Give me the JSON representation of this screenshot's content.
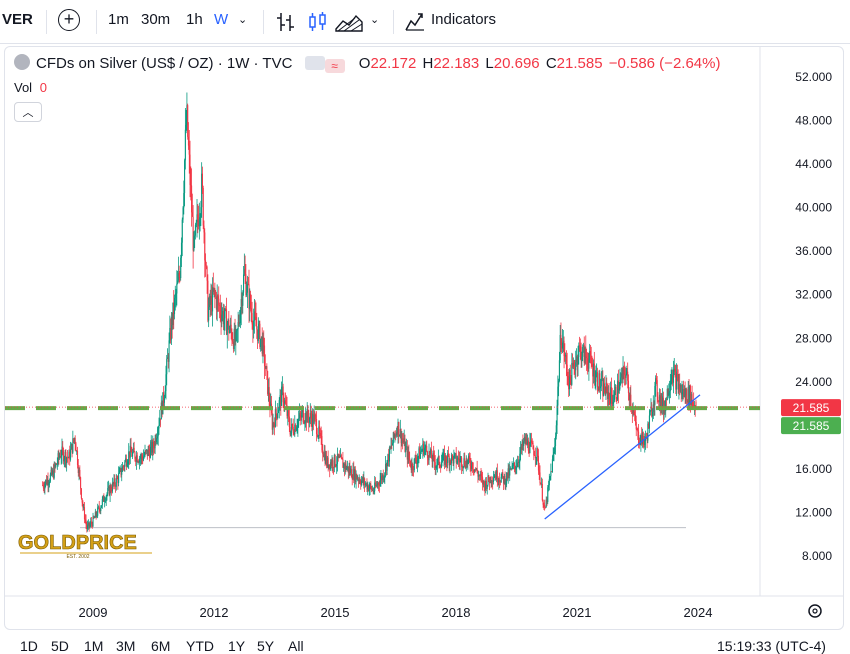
{
  "toolbar": {
    "symbol_fragment": "VER",
    "intervals": [
      "1m",
      "30m",
      "1h",
      "W"
    ],
    "indicators_label": "Indicators"
  },
  "legend": {
    "title": "CFDs on Silver (US$ / OZ) · 1W · TVC",
    "open_label": "O",
    "open_value": "22.172",
    "high_label": "H",
    "high_value": "22.183",
    "low_label": "L",
    "low_value": "20.696",
    "close_label": "C",
    "close_value": "21.585",
    "change": "−0.586 (−2.64%)",
    "vol_label": "Vol",
    "vol_value": "0"
  },
  "logo": {
    "name": "GOLDPRICE",
    "tagline": "EST. 2002"
  },
  "price_labels": {
    "last": "21.585",
    "support": "21.585"
  },
  "bottom_bar": {
    "ranges": [
      "1D",
      "5D",
      "1M",
      "3M",
      "6M",
      "YTD",
      "1Y",
      "5Y",
      "All"
    ],
    "time": "15:19:33 (UTC-4)"
  },
  "colors": {
    "up": "#089981",
    "down": "#f23645",
    "support_line": "#67a949",
    "trend_line": "#2962ff",
    "last_price": "#f23645"
  },
  "chart_data": {
    "type": "candlestick",
    "y_ticks": [
      "52.000",
      "48.000",
      "44.000",
      "40.000",
      "36.000",
      "32.000",
      "28.000",
      "24.000",
      "20.000",
      "16.000",
      "12.000",
      "8.000"
    ],
    "x_ticks": [
      "2009",
      "2012",
      "2015",
      "2018",
      "2021",
      "2024"
    ],
    "ylim": [
      6.0,
      53.5
    ],
    "xlim": [
      2007.7,
      2025.3
    ],
    "series_close": [
      [
        2007.75,
        14.5
      ],
      [
        2008.0,
        15.5
      ],
      [
        2008.2,
        17.5
      ],
      [
        2008.4,
        17.0
      ],
      [
        2008.55,
        19.0
      ],
      [
        2008.75,
        12.5
      ],
      [
        2008.85,
        10.5
      ],
      [
        2009.0,
        11.2
      ],
      [
        2009.3,
        13.5
      ],
      [
        2009.6,
        15.0
      ],
      [
        2009.9,
        17.5
      ],
      [
        2010.2,
        17.0
      ],
      [
        2010.5,
        18.0
      ],
      [
        2010.75,
        22.5
      ],
      [
        2010.95,
        29.5
      ],
      [
        2011.15,
        34.0
      ],
      [
        2011.32,
        48.5
      ],
      [
        2011.5,
        36.0
      ],
      [
        2011.7,
        42.0
      ],
      [
        2011.85,
        30.5
      ],
      [
        2012.0,
        32.0
      ],
      [
        2012.3,
        29.5
      ],
      [
        2012.55,
        27.5
      ],
      [
        2012.75,
        34.0
      ],
      [
        2012.95,
        30.0
      ],
      [
        2013.2,
        27.5
      ],
      [
        2013.45,
        20.0
      ],
      [
        2013.7,
        23.0
      ],
      [
        2013.9,
        19.5
      ],
      [
        2014.2,
        21.0
      ],
      [
        2014.5,
        20.5
      ],
      [
        2014.8,
        16.5
      ],
      [
        2015.1,
        16.8
      ],
      [
        2015.4,
        15.7
      ],
      [
        2015.7,
        14.8
      ],
      [
        2015.95,
        14.0
      ],
      [
        2016.2,
        15.5
      ],
      [
        2016.55,
        20.0
      ],
      [
        2016.9,
        16.2
      ],
      [
        2017.2,
        18.0
      ],
      [
        2017.5,
        16.5
      ],
      [
        2017.8,
        17.0
      ],
      [
        2018.1,
        16.8
      ],
      [
        2018.4,
        16.5
      ],
      [
        2018.7,
        14.5
      ],
      [
        2018.95,
        15.5
      ],
      [
        2019.2,
        15.0
      ],
      [
        2019.5,
        16.5
      ],
      [
        2019.7,
        18.5
      ],
      [
        2020.0,
        17.5
      ],
      [
        2020.2,
        12.0
      ],
      [
        2020.45,
        18.0
      ],
      [
        2020.6,
        28.5
      ],
      [
        2020.8,
        24.0
      ],
      [
        2021.05,
        27.0
      ],
      [
        2021.3,
        26.0
      ],
      [
        2021.6,
        23.5
      ],
      [
        2021.9,
        22.5
      ],
      [
        2022.2,
        25.0
      ],
      [
        2022.5,
        19.0
      ],
      [
        2022.7,
        18.5
      ],
      [
        2022.95,
        23.5
      ],
      [
        2023.15,
        21.5
      ],
      [
        2023.35,
        25.0
      ],
      [
        2023.6,
        23.0
      ],
      [
        2023.8,
        22.8
      ],
      [
        2023.95,
        21.585
      ]
    ],
    "support_level": 21.585,
    "base_level": 10.6,
    "trendline": [
      [
        2020.2,
        11.4
      ],
      [
        2024.05,
        22.8
      ]
    ],
    "last_close": 21.585
  }
}
